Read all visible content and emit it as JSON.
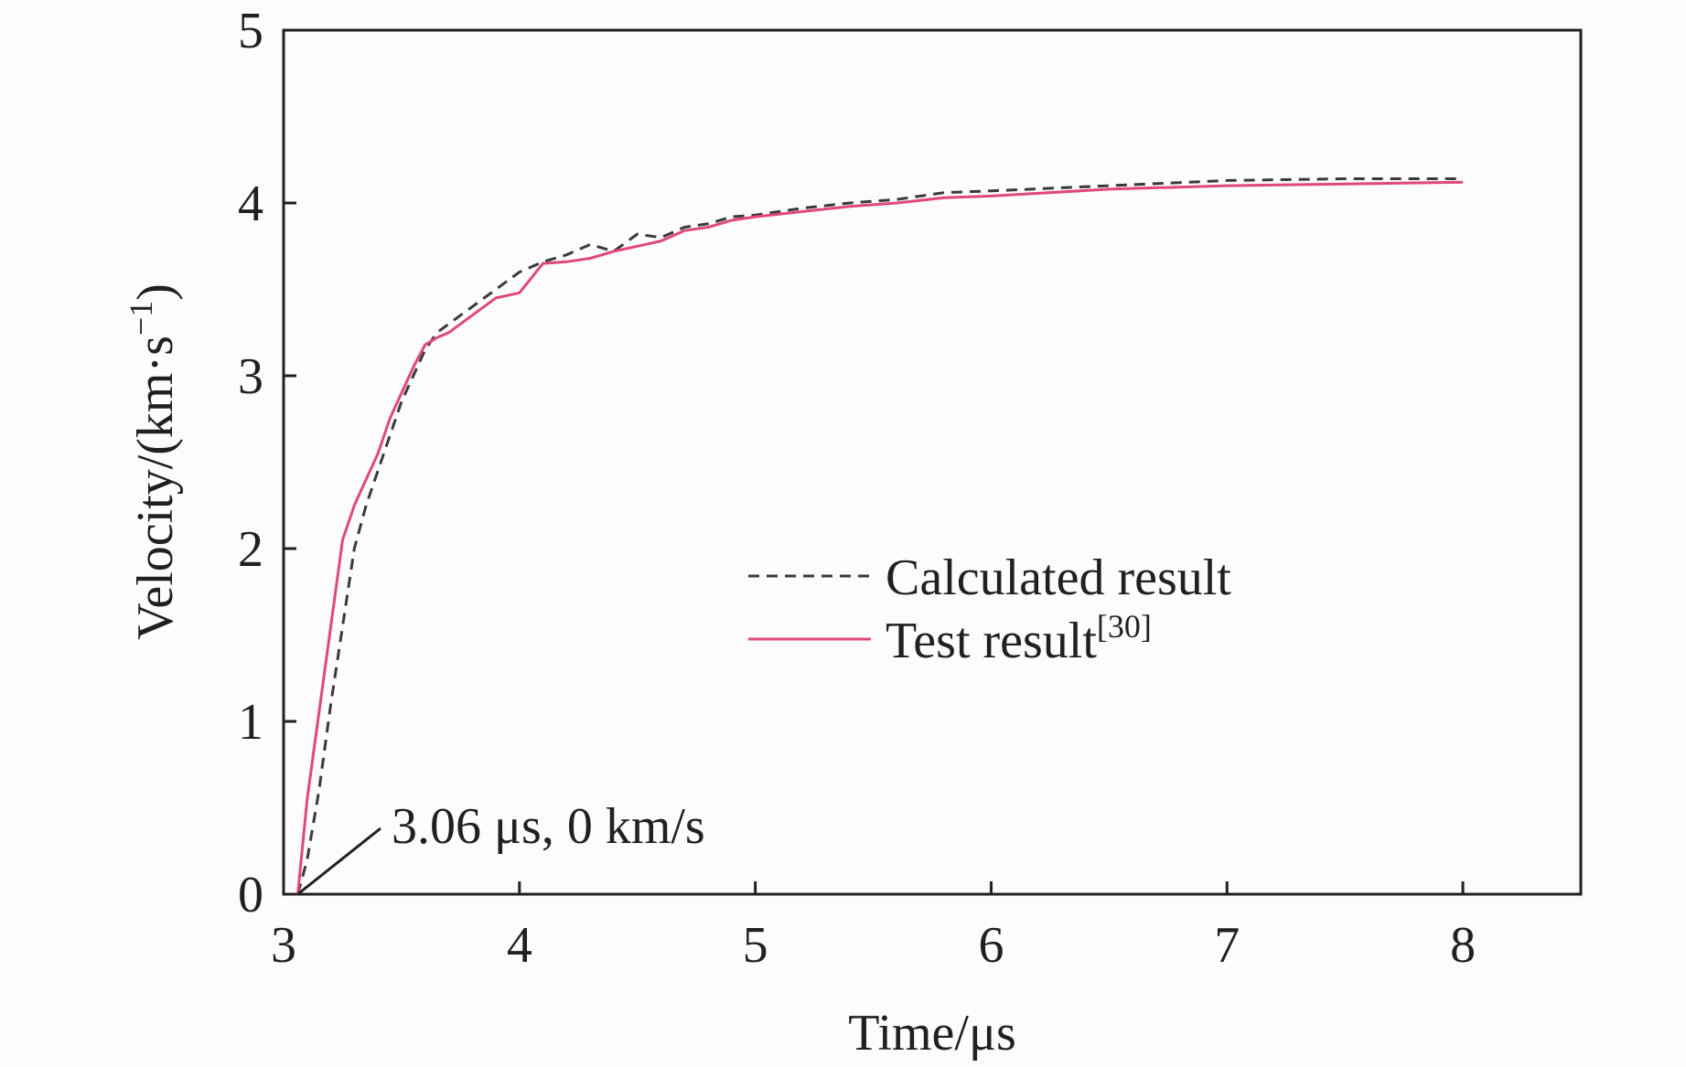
{
  "chart_data": {
    "type": "line",
    "xlabel": "Time/μs",
    "ylabel": "Velocity/(km·s",
    "ylabel_sup": "−1",
    "ylabel_close": ")",
    "xlim": [
      3,
      8.5
    ],
    "ylim": [
      0,
      5
    ],
    "xticks": [
      3,
      4,
      5,
      6,
      7,
      8
    ],
    "yticks": [
      0,
      1,
      2,
      3,
      4,
      5
    ],
    "grid": false,
    "legend_position": "center-right",
    "annotation": {
      "text": "3.06 μs, 0 km/s",
      "x": 3.06,
      "y": 0
    },
    "series": [
      {
        "name": "Calculated result",
        "color": "#3a3a3a",
        "dash": "dashed",
        "x": [
          3.06,
          3.1,
          3.15,
          3.2,
          3.25,
          3.3,
          3.35,
          3.4,
          3.45,
          3.5,
          3.55,
          3.6,
          3.65,
          3.7,
          3.8,
          3.9,
          4.0,
          4.1,
          4.2,
          4.3,
          4.4,
          4.5,
          4.6,
          4.7,
          4.8,
          4.9,
          5.0,
          5.2,
          5.4,
          5.6,
          5.8,
          6.0,
          6.5,
          7.0,
          7.5,
          8.0
        ],
        "y": [
          0.0,
          0.2,
          0.6,
          1.1,
          1.55,
          2.0,
          2.25,
          2.45,
          2.65,
          2.85,
          3.0,
          3.15,
          3.25,
          3.3,
          3.4,
          3.5,
          3.6,
          3.66,
          3.7,
          3.76,
          3.72,
          3.82,
          3.8,
          3.86,
          3.88,
          3.92,
          3.93,
          3.97,
          4.0,
          4.02,
          4.06,
          4.07,
          4.1,
          4.13,
          4.14,
          4.14
        ]
      },
      {
        "name": "Test result",
        "name_sup": "[30]",
        "color": "#e0487a",
        "dash": "solid",
        "x": [
          3.06,
          3.1,
          3.15,
          3.2,
          3.25,
          3.3,
          3.35,
          3.4,
          3.45,
          3.5,
          3.55,
          3.6,
          3.65,
          3.7,
          3.8,
          3.9,
          4.0,
          4.1,
          4.2,
          4.3,
          4.4,
          4.5,
          4.6,
          4.7,
          4.8,
          4.9,
          5.0,
          5.2,
          5.4,
          5.6,
          5.8,
          6.0,
          6.5,
          7.0,
          7.5,
          8.0
        ],
        "y": [
          0.0,
          0.55,
          1.05,
          1.55,
          2.05,
          2.25,
          2.4,
          2.55,
          2.75,
          2.9,
          3.05,
          3.18,
          3.22,
          3.25,
          3.35,
          3.45,
          3.48,
          3.65,
          3.66,
          3.68,
          3.72,
          3.75,
          3.78,
          3.84,
          3.86,
          3.9,
          3.92,
          3.95,
          3.98,
          4.0,
          4.03,
          4.04,
          4.08,
          4.1,
          4.11,
          4.12
        ]
      }
    ]
  }
}
